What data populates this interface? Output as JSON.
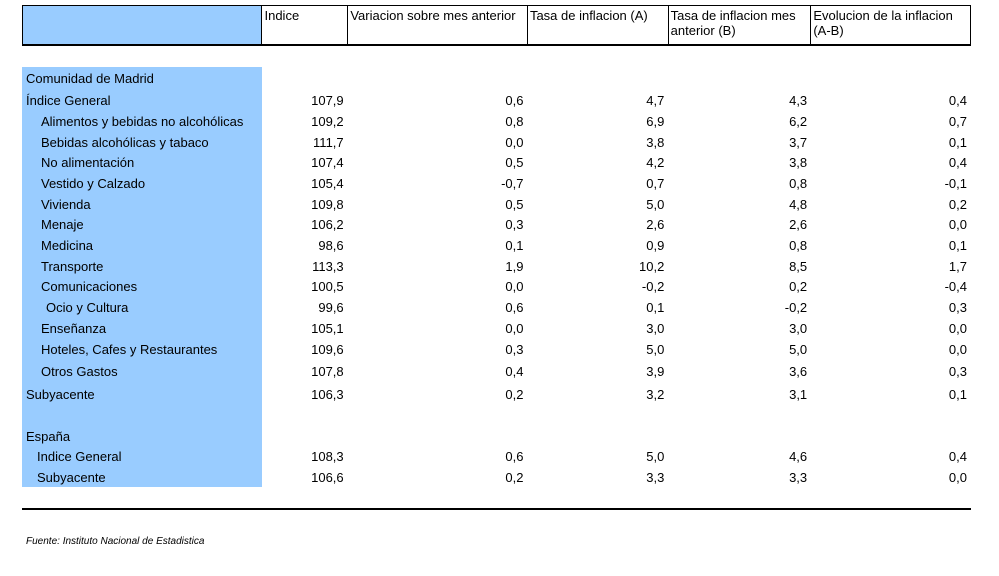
{
  "columns": [
    "",
    "Indice",
    "Variacion sobre mes anterior",
    "Tasa de inflacion (A)",
    "Tasa de inflacion mes anterior (B)",
    "Evolucion de la inflacion (A-B)"
  ],
  "madrid": {
    "title": "Comunidad de Madrid",
    "rows": [
      {
        "label": "Índice General",
        "values": [
          "107,9",
          "0,6",
          "4,7",
          "4,3",
          "0,4"
        ]
      },
      {
        "label": "Alimentos y bebidas no alcohólicas",
        "values": [
          "109,2",
          "0,8",
          "6,9",
          "6,2",
          "0,7"
        ]
      },
      {
        "label": "Bebidas alcohólicas y tabaco",
        "values": [
          "111,7",
          "0,0",
          "3,8",
          "3,7",
          "0,1"
        ]
      },
      {
        "label": "No alimentación",
        "values": [
          "107,4",
          "0,5",
          "4,2",
          "3,8",
          "0,4"
        ]
      },
      {
        "label": "Vestido y Calzado",
        "values": [
          "105,4",
          "-0,7",
          "0,7",
          "0,8",
          "-0,1"
        ]
      },
      {
        "label": "Vivienda",
        "values": [
          "109,8",
          "0,5",
          "5,0",
          "4,8",
          "0,2"
        ]
      },
      {
        "label": "Menaje",
        "values": [
          "106,2",
          "0,3",
          "2,6",
          "2,6",
          "0,0"
        ]
      },
      {
        "label": "Medicina",
        "values": [
          "98,6",
          "0,1",
          "0,9",
          "0,8",
          "0,1"
        ]
      },
      {
        "label": "Transporte",
        "values": [
          "113,3",
          "1,9",
          "10,2",
          "8,5",
          "1,7"
        ]
      },
      {
        "label": "Comunicaciones",
        "values": [
          "100,5",
          "0,0",
          "-0,2",
          "0,2",
          "-0,4"
        ]
      },
      {
        "label": "Ocio y Cultura",
        "values": [
          "99,6",
          "0,6",
          "0,1",
          "-0,2",
          "0,3"
        ]
      },
      {
        "label": "Enseñanza",
        "values": [
          "105,1",
          "0,0",
          "3,0",
          "3,0",
          "0,0"
        ]
      },
      {
        "label": "Hoteles, Cafes y Restaurantes",
        "values": [
          "109,6",
          "0,3",
          "5,0",
          "5,0",
          "0,0"
        ]
      },
      {
        "label": "Otros Gastos",
        "values": [
          "107,8",
          "0,4",
          "3,9",
          "3,6",
          "0,3"
        ]
      },
      {
        "label": "Subyacente",
        "values": [
          "106,3",
          "0,2",
          "3,2",
          "3,1",
          "0,1"
        ]
      }
    ]
  },
  "spain": {
    "title": "España",
    "rows": [
      {
        "label": "Indice General",
        "values": [
          "108,3",
          "0,6",
          "5,0",
          "4,6",
          "0,4"
        ]
      },
      {
        "label": "Subyacente",
        "values": [
          "106,6",
          "0,2",
          "3,3",
          "3,3",
          "0,0"
        ]
      }
    ]
  },
  "source": "Fuente: Instituto Nacional de Estadistica",
  "colors": {
    "label_column": "#99ccff"
  }
}
